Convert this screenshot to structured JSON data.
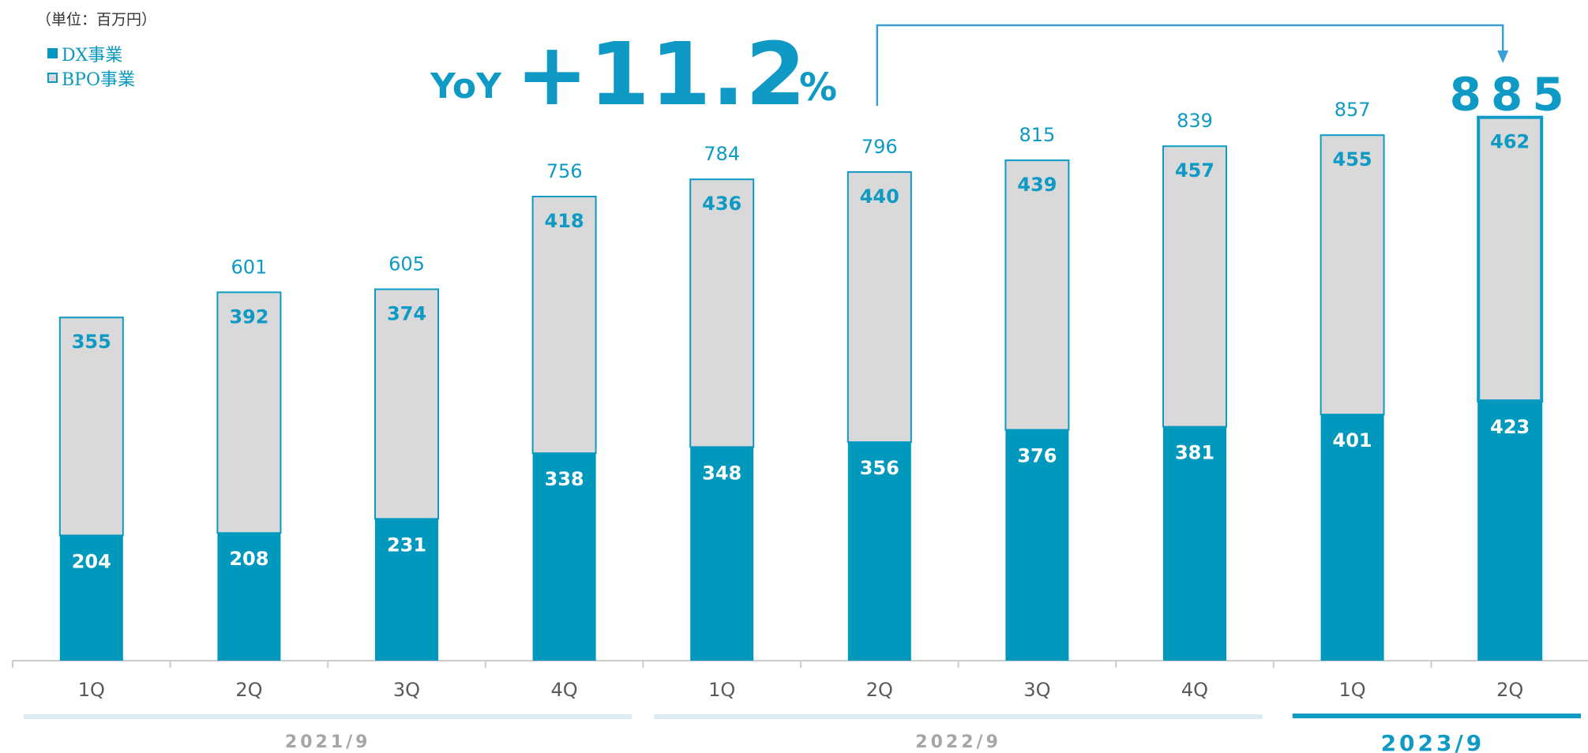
{
  "unit_label": "（単位：百万円）",
  "legend": [
    {
      "label": "DX事業",
      "color": "#0099bd"
    },
    {
      "label": "BPO事業",
      "color": "#d9d9d9"
    }
  ],
  "yoy": {
    "label": "YoY",
    "value": "+11.2",
    "unit": "%"
  },
  "colors": {
    "dx": "#0099bd",
    "bpo": "#d9d9d9",
    "accent": "#0e9ac4",
    "axis": "#cccccc",
    "period_band": "#dcebf3"
  },
  "chart_data": {
    "type": "bar",
    "stacked": true,
    "categories": [
      "1Q",
      "2Q",
      "3Q",
      "4Q",
      "1Q",
      "2Q",
      "3Q",
      "4Q",
      "1Q",
      "2Q"
    ],
    "fiscal_years": [
      {
        "label": "2021/9",
        "quarters": 4,
        "highlight": false
      },
      {
        "label": "2022/9",
        "quarters": 4,
        "highlight": false
      },
      {
        "label": "2023/9",
        "quarters": 2,
        "highlight": true
      }
    ],
    "series": [
      {
        "name": "DX事業",
        "values": [
          204,
          208,
          231,
          338,
          348,
          356,
          376,
          381,
          401,
          423
        ]
      },
      {
        "name": "BPO事業",
        "values": [
          355,
          392,
          374,
          418,
          436,
          440,
          439,
          457,
          455,
          462
        ]
      }
    ],
    "totals": [
      null,
      601,
      605,
      756,
      784,
      796,
      815,
      839,
      857,
      885
    ],
    "highlight_index": 9,
    "ylim": [
      0,
      900
    ],
    "grid": false,
    "legend_position": "top-left"
  }
}
